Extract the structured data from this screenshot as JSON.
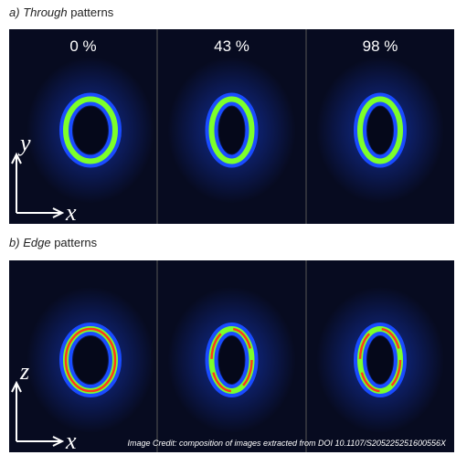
{
  "sections": [
    {
      "label": "a)",
      "emphasis": "Through",
      "rest": "patterns",
      "axes": [
        "y",
        "x"
      ],
      "panels": [
        "0 %",
        "43 %",
        "98 %"
      ]
    },
    {
      "label": "b)",
      "emphasis": "Edge",
      "rest": "patterns",
      "axes": [
        "z",
        "x"
      ],
      "panels": []
    }
  ],
  "credit": "Image Credit: composition of images extracted from DOI 10.1107/S205225251600556X"
}
